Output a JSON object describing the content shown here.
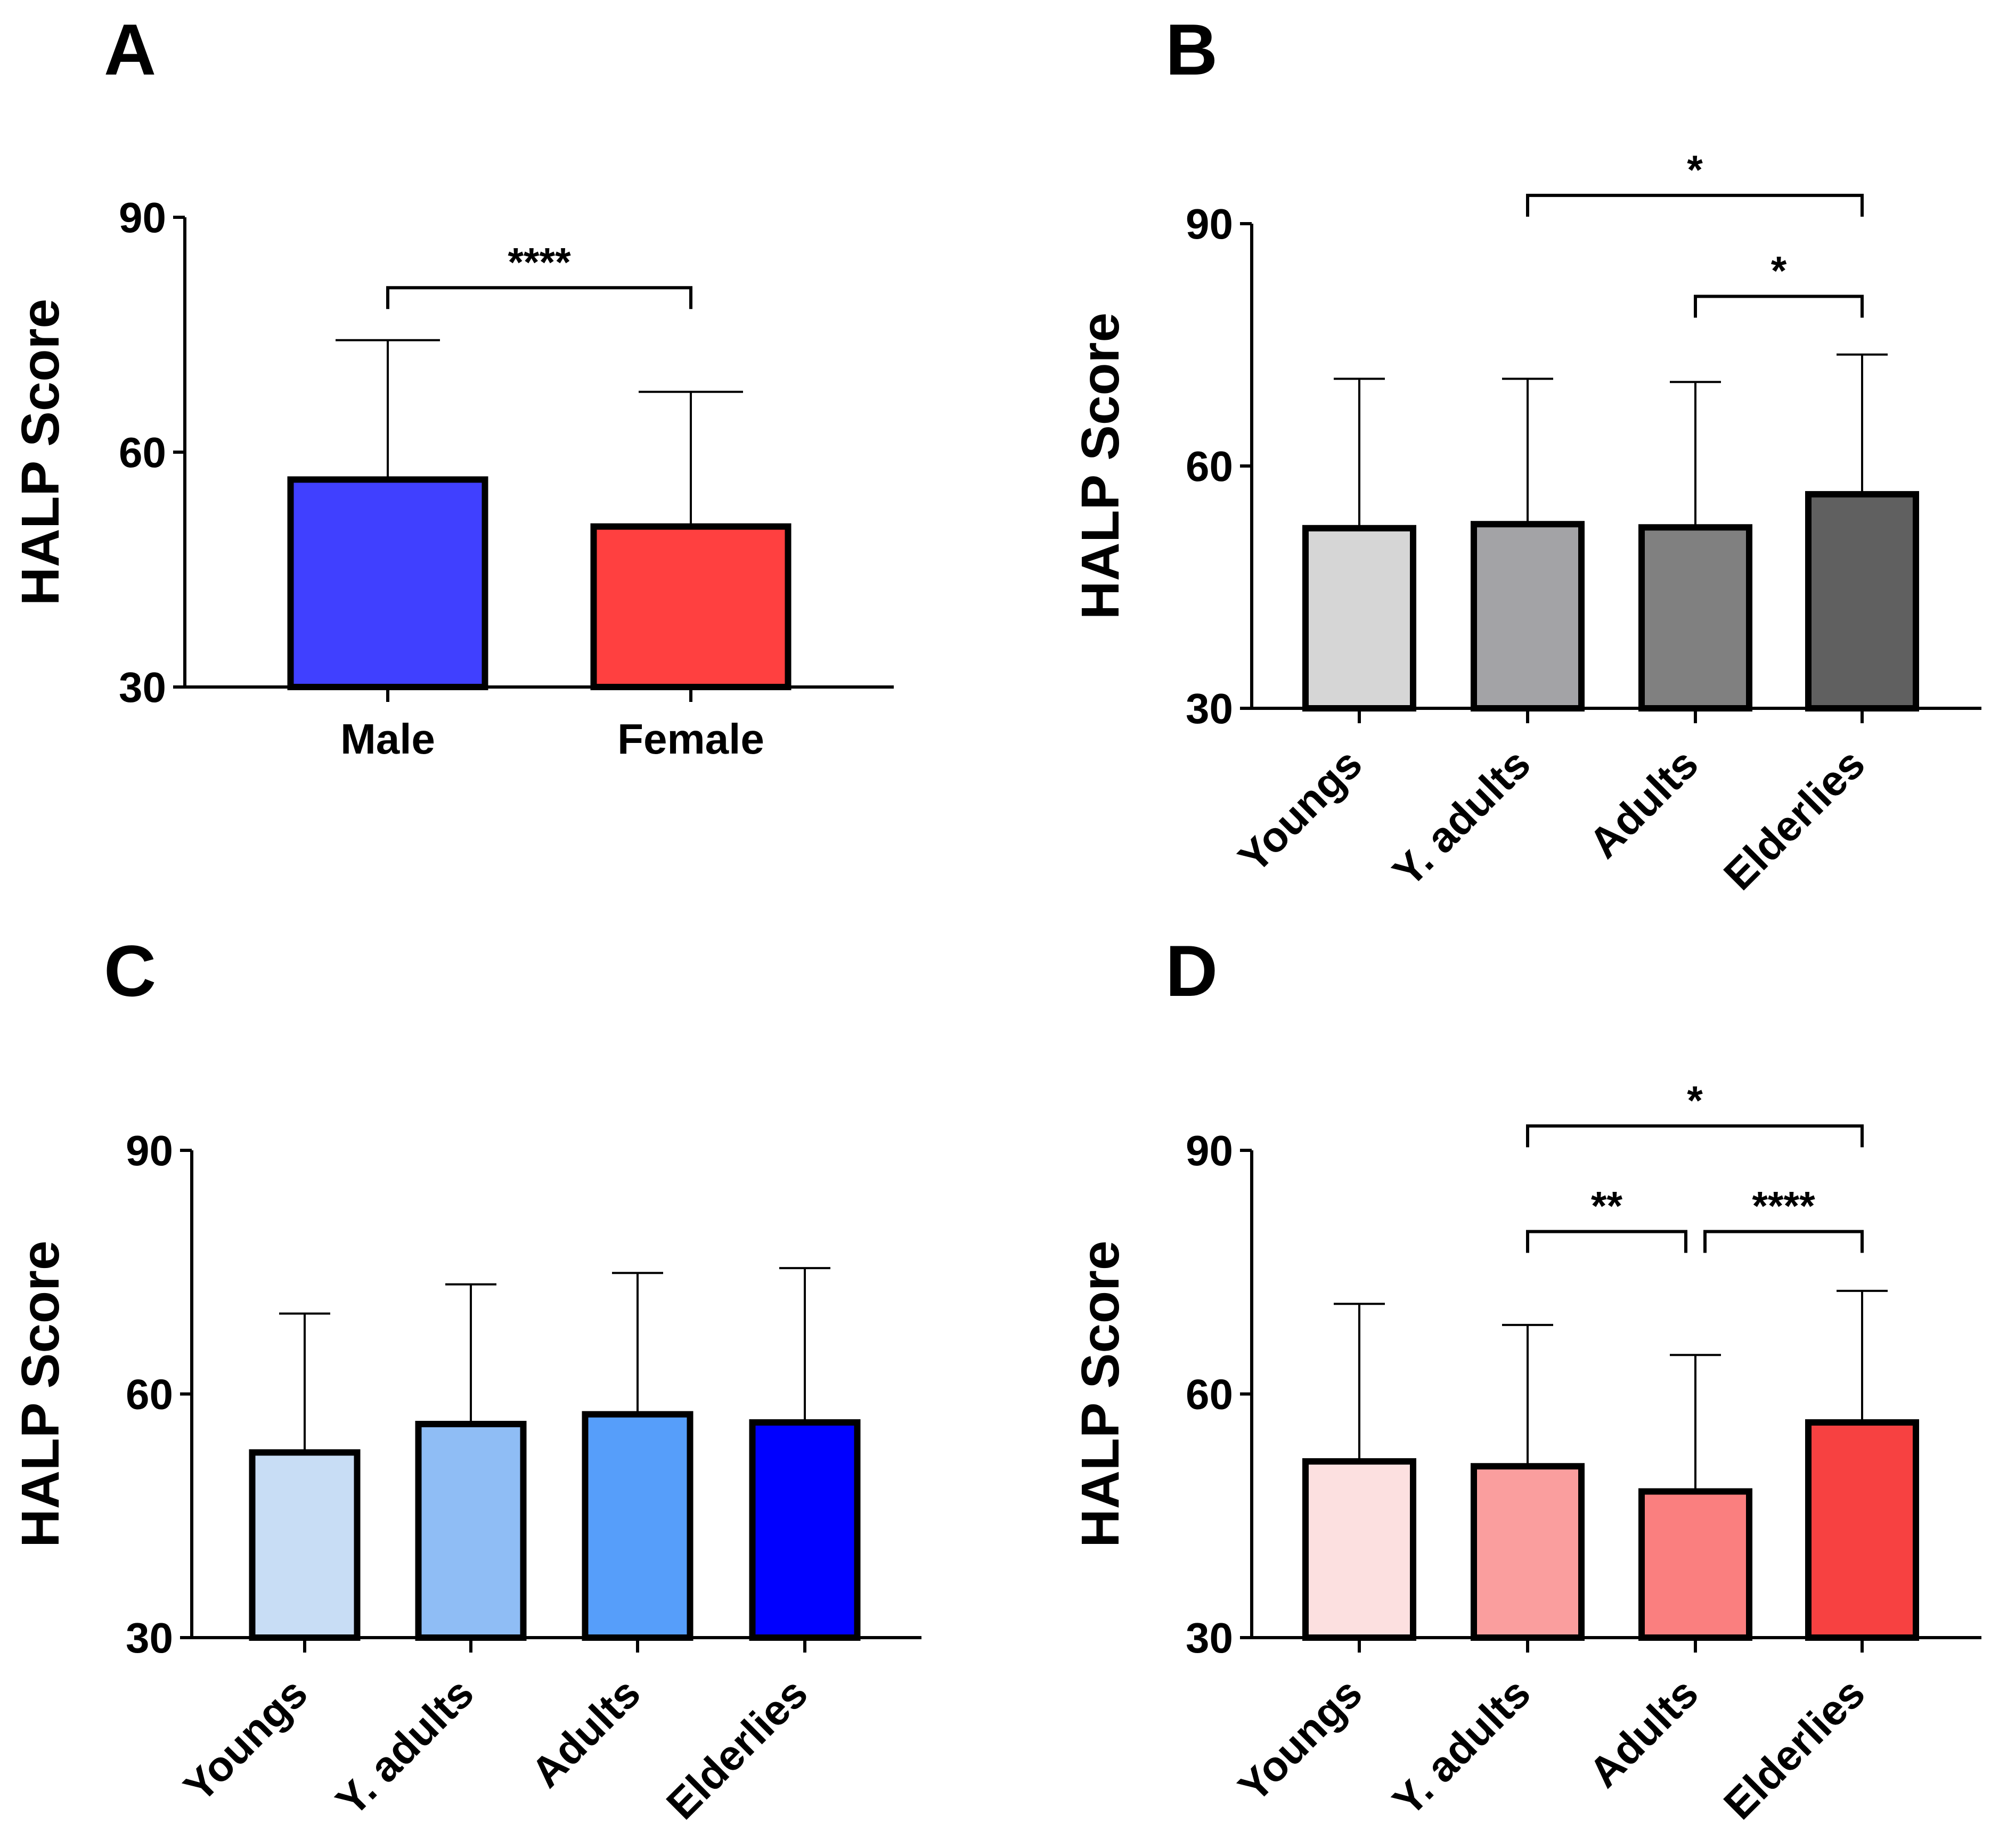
{
  "chart_data": [
    {
      "panel": "A",
      "type": "bar",
      "categories": [
        "Male",
        "Female"
      ],
      "values": [
        56.5,
        50.5
      ],
      "errors": [
        17.8,
        17.2
      ],
      "colors": [
        "#4040FF",
        "#FF4040"
      ],
      "ylabel": "HALP Score",
      "ylim": [
        30,
        90
      ],
      "yticks": [
        30,
        60,
        90
      ],
      "significance": [
        {
          "from": 0,
          "to": 1,
          "label": "****",
          "level": 81
        }
      ]
    },
    {
      "panel": "B",
      "type": "bar",
      "categories": [
        "Youngs",
        "Y. adults",
        "Adults",
        "Elderlies"
      ],
      "values": [
        52.3,
        52.8,
        52.4,
        56.5
      ],
      "errors": [
        18.5,
        18.0,
        18.0,
        17.3
      ],
      "colors": [
        "#D6D6D6",
        "#A3A3A6",
        "#808080",
        "#606060"
      ],
      "ylabel": "HALP Score",
      "ylim": [
        30,
        90
      ],
      "yticks": [
        30,
        60,
        90
      ],
      "significance": [
        {
          "from": 1,
          "to": 3,
          "label": "*",
          "level": 93.5
        },
        {
          "from": 2,
          "to": 3,
          "label": "*",
          "level": 81
        }
      ]
    },
    {
      "panel": "C",
      "type": "bar",
      "categories": [
        "Youngs",
        "Y. adults",
        "Adults",
        "Elderlies"
      ],
      "values": [
        52.8,
        56.3,
        57.5,
        56.5
      ],
      "errors": [
        17.1,
        17.2,
        17.4,
        19.0
      ],
      "colors": [
        "#C8DDF5",
        "#8FBDF5",
        "#569EFA",
        "#0000FF"
      ],
      "ylabel": "HALP Score",
      "ylim": [
        30,
        90
      ],
      "yticks": [
        30,
        60,
        90
      ],
      "significance": []
    },
    {
      "panel": "D",
      "type": "bar",
      "categories": [
        "Youngs",
        "Y. adults",
        "Adults",
        "Elderlies"
      ],
      "values": [
        51.7,
        51.1,
        48.0,
        56.5
      ],
      "errors": [
        19.4,
        17.4,
        16.8,
        16.2
      ],
      "colors": [
        "#FCE0E0",
        "#FA9E9E",
        "#FA7F7F",
        "#F74141"
      ],
      "ylabel": "HALP Score",
      "ylim": [
        30,
        90
      ],
      "yticks": [
        30,
        60,
        90
      ],
      "significance": [
        {
          "from": 1,
          "to": 3,
          "label": "*",
          "level": 93
        },
        {
          "from": 1,
          "to": 2,
          "label": "**",
          "level": 80
        },
        {
          "from": 2,
          "to": 3,
          "label": "****",
          "level": 80
        }
      ]
    }
  ]
}
